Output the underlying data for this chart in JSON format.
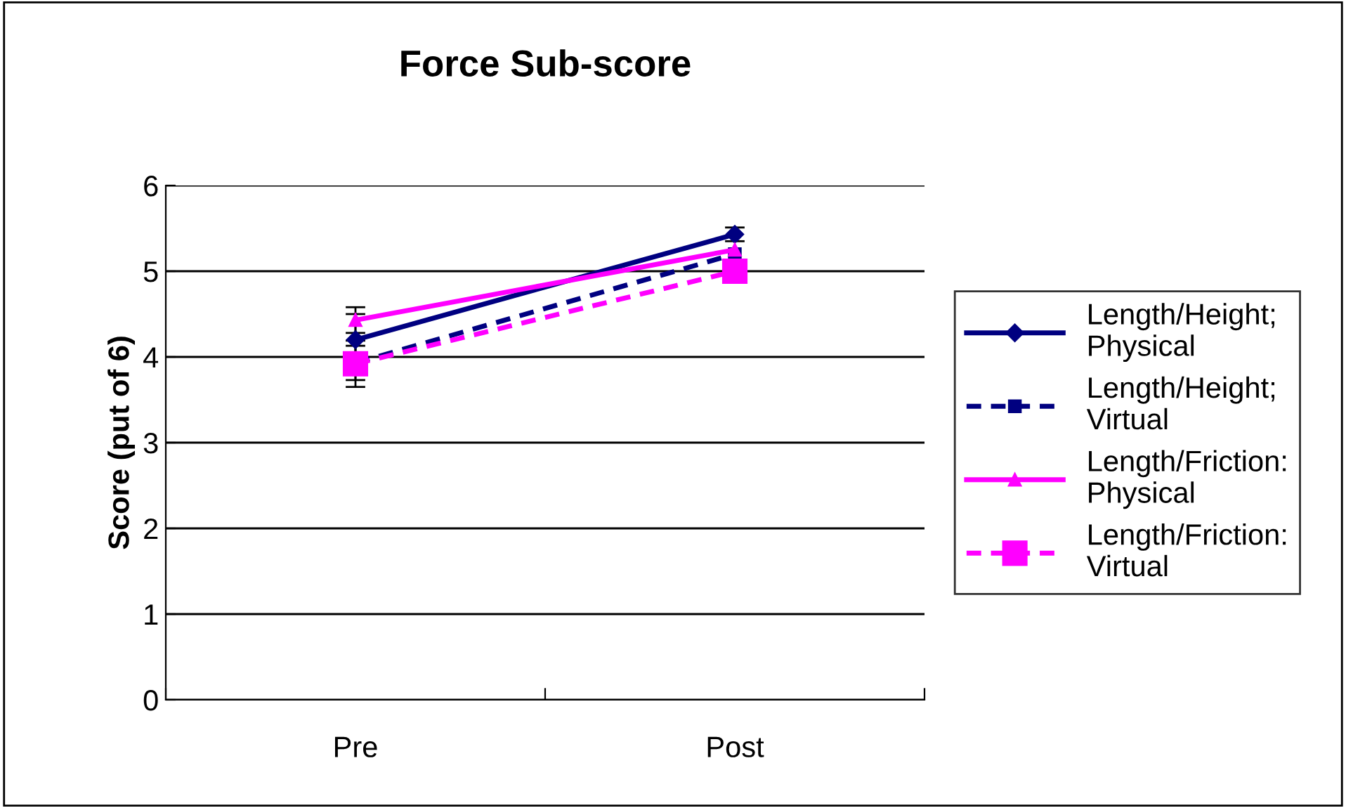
{
  "chart_data": {
    "type": "line",
    "title": "Force Sub-score",
    "ylabel": "Score (put of 6)",
    "categories": [
      "Pre",
      "Post"
    ],
    "series": [
      {
        "name": "Length/Height;\nPhysical",
        "color": "#000080",
        "values": [
          4.2,
          5.43
        ],
        "errors": [
          0.3,
          0.08
        ],
        "marker": "diamond",
        "line_style": "solid"
      },
      {
        "name": "Length/Height;\nVirtual",
        "color": "#000080",
        "values": [
          3.93,
          5.2
        ],
        "errors": [
          0.2,
          null
        ],
        "marker": "square",
        "line_style": "dashed"
      },
      {
        "name": "Length/Friction:\nPhysical",
        "color": "#ff00ff",
        "values": [
          4.43,
          5.25
        ],
        "errors": [
          0.15,
          null
        ],
        "marker": "triangle",
        "line_style": "solid"
      },
      {
        "name": "Length/Friction:\nVirtual",
        "color": "#ff00ff",
        "values": [
          3.92,
          5.0
        ],
        "errors": [
          0.27,
          null
        ],
        "marker": "square",
        "line_style": "dashed"
      }
    ],
    "ylim": [
      0,
      6
    ],
    "yticks": [
      0,
      1,
      2,
      3,
      4,
      5,
      6
    ],
    "grid": "y",
    "legend": "right"
  }
}
